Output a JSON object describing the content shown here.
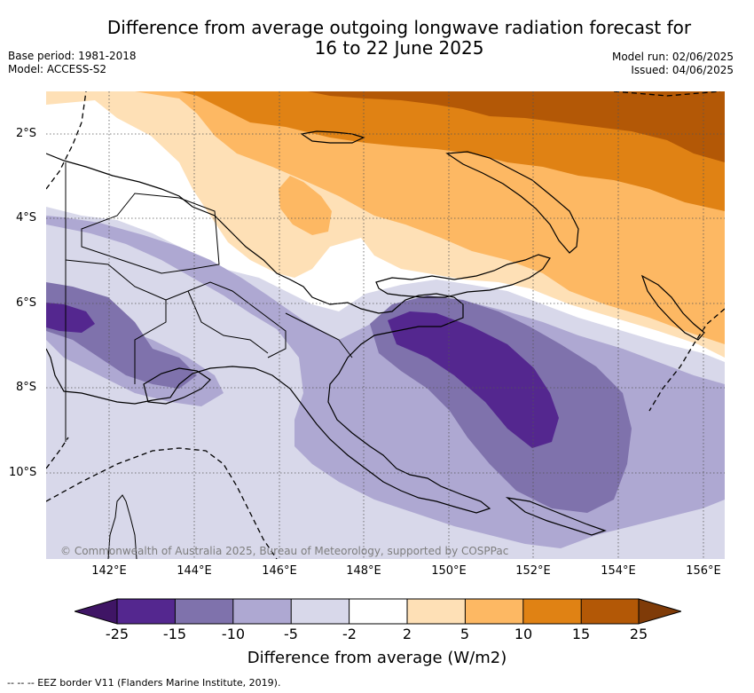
{
  "title_line1": "Difference from average outgoing longwave radiation forecast for",
  "title_line2": "16 to 22 June 2025",
  "base_period": "Base period: 1981-2018",
  "model": "Model: ACCESS-S2",
  "model_run": "Model run: 02/06/2025",
  "issued": "Issued: 04/06/2025",
  "lat_labels": [
    "2°S",
    "4°S",
    "6°S",
    "8°S",
    "10°S"
  ],
  "lon_labels": [
    "142°E",
    "144°E",
    "146°E",
    "148°E",
    "150°E",
    "152°E",
    "154°E",
    "156°E"
  ],
  "copyright": "© Commonwealth of Australia 2025, Bureau of Meteorology, supported by COSPPac",
  "colorbar": {
    "title": "Difference from average (W/m2)",
    "labels": [
      "-25",
      "-15",
      "-10",
      "-5",
      "-2",
      "2",
      "5",
      "10",
      "15",
      "25"
    ],
    "colors": [
      "#3f1565",
      "#54278f",
      "#7f72ac",
      "#aea8d2",
      "#d8d8ea",
      "#ffffff",
      "#fee0b6",
      "#fdb863",
      "#e08214",
      "#b35806",
      "#7f3b08"
    ]
  },
  "legend_note": "--  --  -- EEZ border V11 (Flanders Marine Institute, 2019)."
}
